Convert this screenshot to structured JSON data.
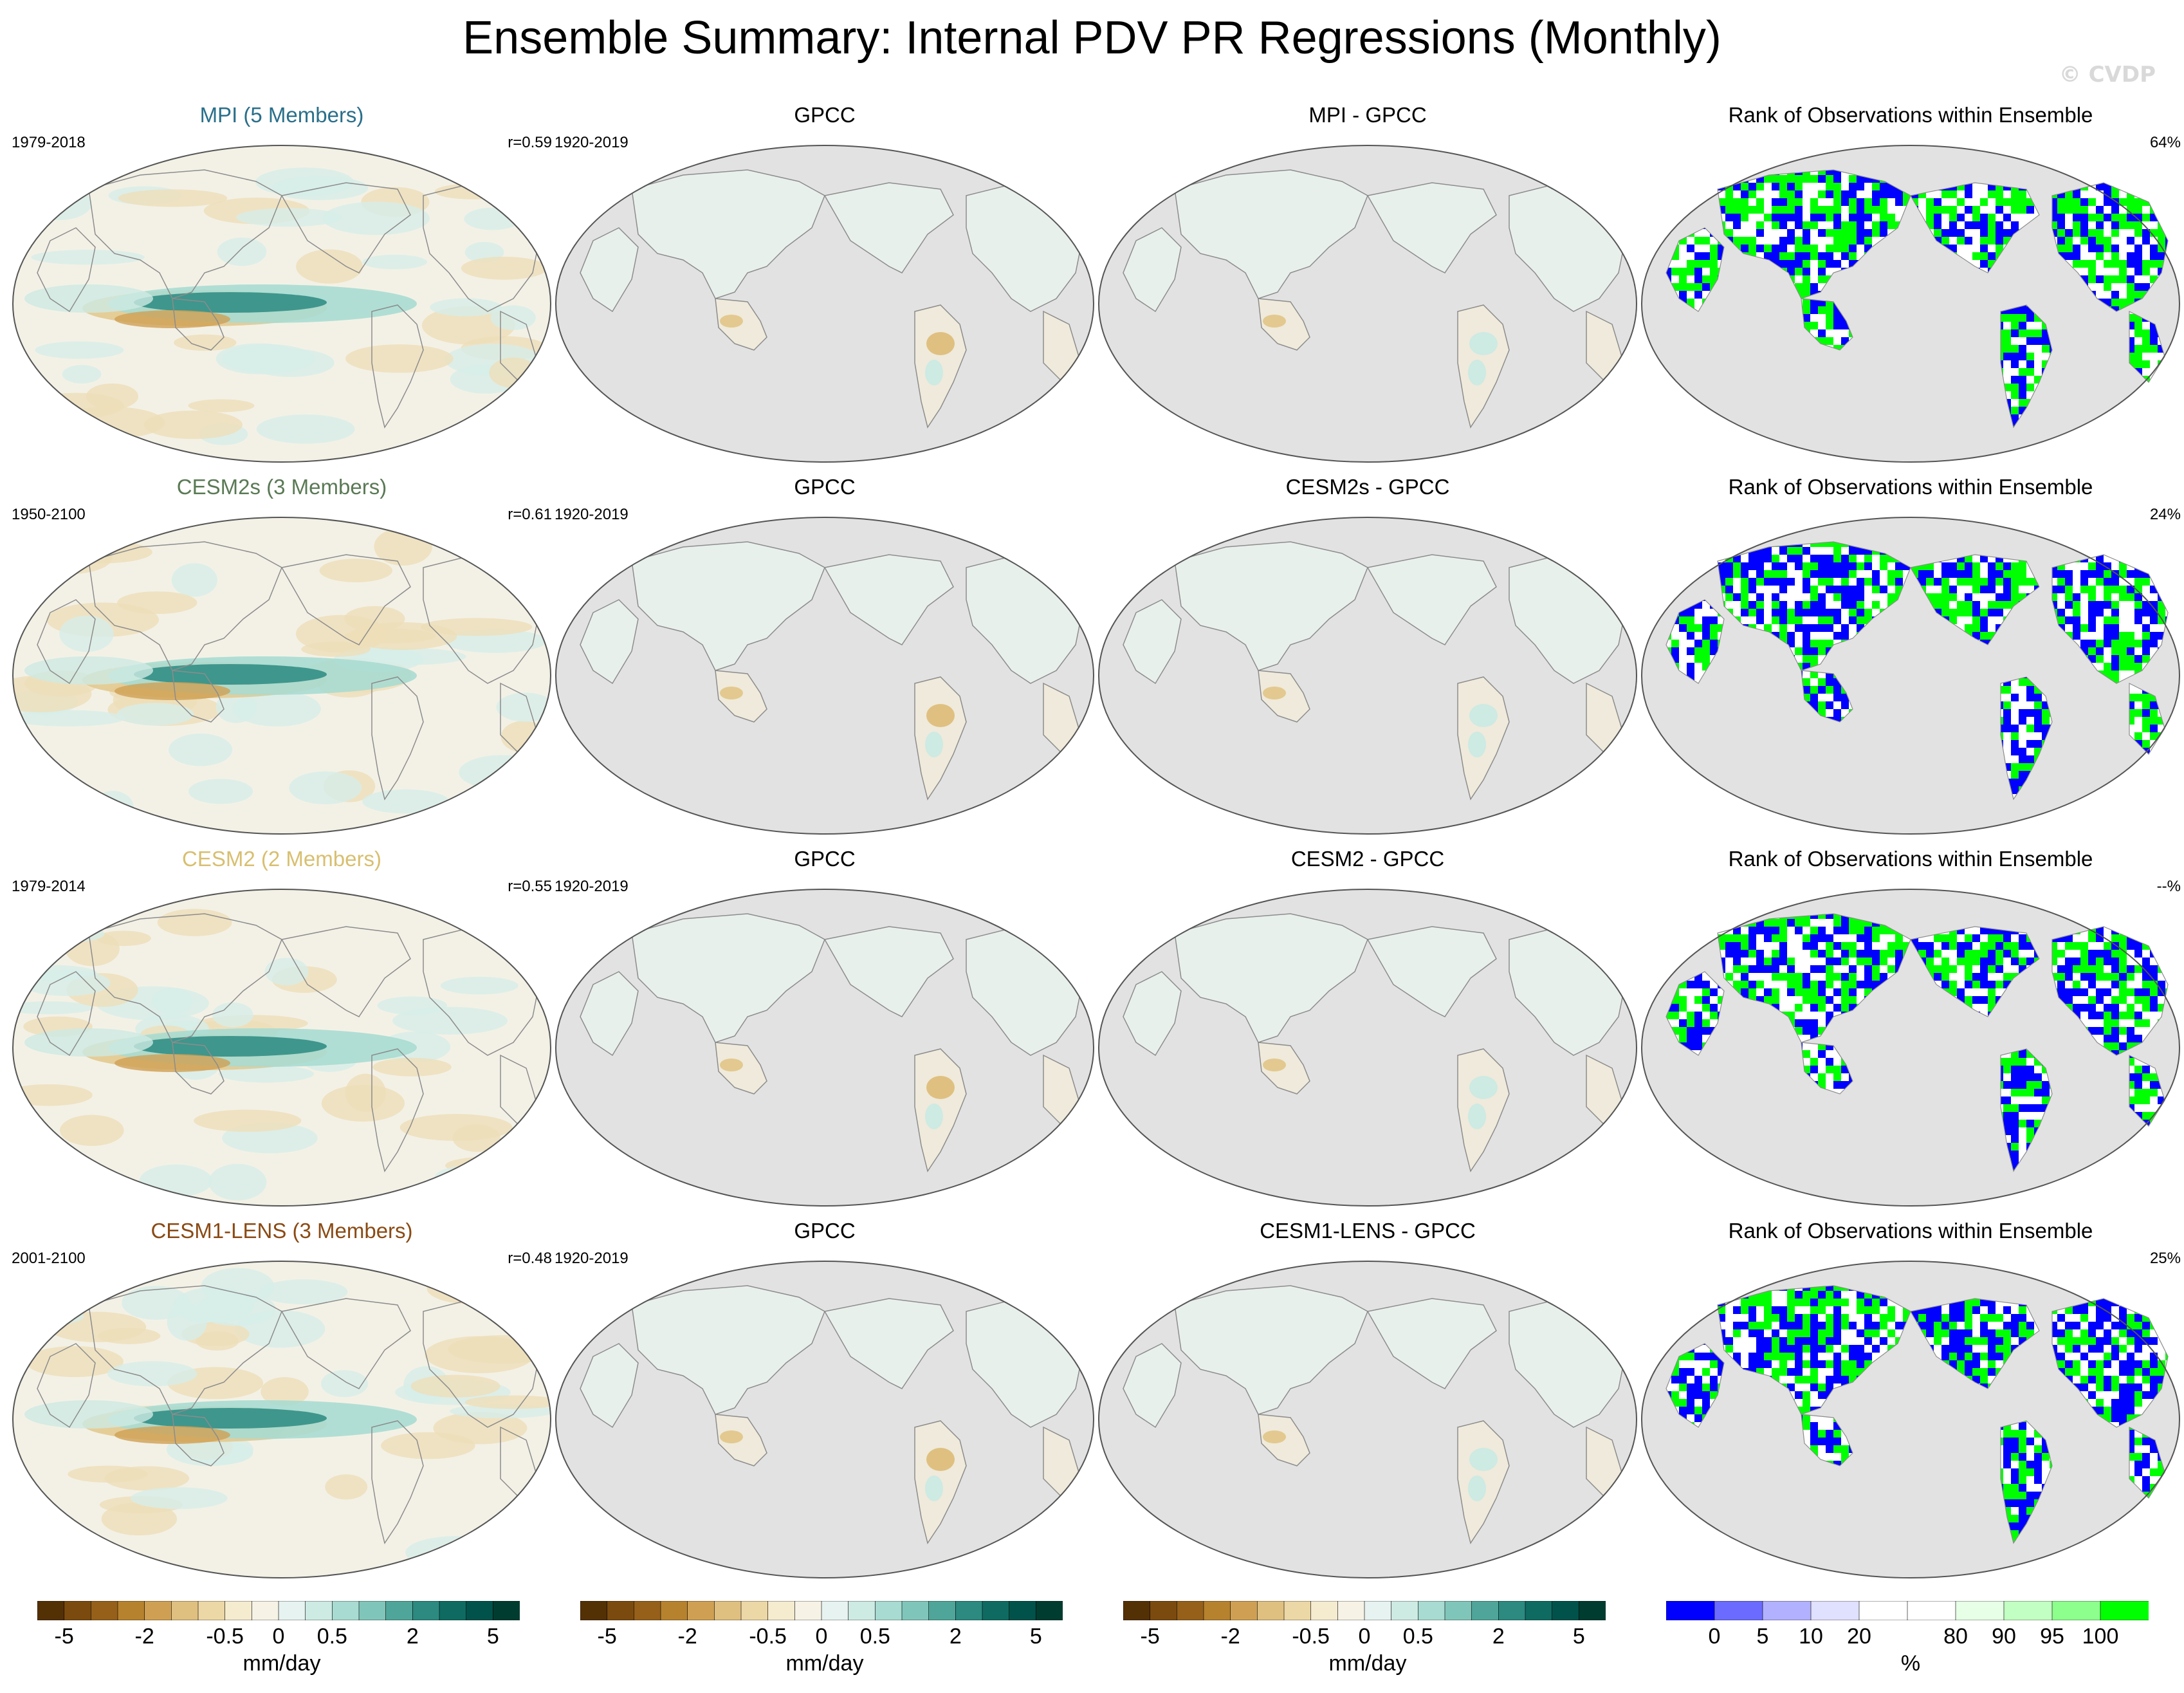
{
  "title": "Ensemble Summary: Internal PDV PR Regressions (Monthly)",
  "watermark": "© CVDP",
  "rows": [
    {
      "model_title": "MPI (5 Members)",
      "model_color": "#2a6f8a",
      "model_years": "1979-2018",
      "pattern_corr": "r=0.59",
      "obs_title": "GPCC",
      "obs_years": "1920-2019",
      "diff_title": "MPI - GPCC",
      "rank_title": "Rank of Observations within Ensemble",
      "rank_pct": "64%"
    },
    {
      "model_title": "CESM2s (3 Members)",
      "model_color": "#5a7a55",
      "model_years": "1950-2100",
      "pattern_corr": "r=0.61",
      "obs_title": "GPCC",
      "obs_years": "1920-2019",
      "diff_title": "CESM2s - GPCC",
      "rank_title": "Rank of Observations within Ensemble",
      "rank_pct": "24%"
    },
    {
      "model_title": "CESM2 (2 Members)",
      "model_color": "#d8bf70",
      "model_years": "1979-2014",
      "pattern_corr": "r=0.55",
      "obs_title": "GPCC",
      "obs_years": "1920-2019",
      "diff_title": "CESM2 - GPCC",
      "rank_title": "Rank of Observations within Ensemble",
      "rank_pct": "--%"
    },
    {
      "model_title": "CESM1-LENS (3 Members)",
      "model_color": "#8a4a14",
      "model_years": "2001-2100",
      "pattern_corr": "r=0.48",
      "obs_title": "GPCC",
      "obs_years": "1920-2019",
      "diff_title": "CESM1-LENS - GPCC",
      "rank_title": "Rank of Observations within Ensemble",
      "rank_pct": "25%"
    }
  ],
  "colorbars": {
    "regression": {
      "colors": [
        "#543005",
        "#7a4a0e",
        "#96601a",
        "#b7822e",
        "#cfa054",
        "#dfc080",
        "#ecd7a6",
        "#f5ebcf",
        "#f6f3e6",
        "#e6f3f0",
        "#cdeae3",
        "#a8dbd1",
        "#80c5b9",
        "#4fa59a",
        "#2c8a80",
        "#0f6b62",
        "#01524a",
        "#003c30"
      ],
      "ticks": [
        {
          "label": "-5",
          "pos": 1
        },
        {
          "label": "-2",
          "pos": 4
        },
        {
          "label": "-0.5",
          "pos": 7
        },
        {
          "label": "0",
          "pos": 9
        },
        {
          "label": "0.5",
          "pos": 11
        },
        {
          "label": "2",
          "pos": 14
        },
        {
          "label": "5",
          "pos": 17
        }
      ],
      "unit": "mm/day"
    },
    "rank": {
      "colors": [
        "#0000ff",
        "#6b6bff",
        "#b1b1ff",
        "#e0e0ff",
        "#ffffff",
        "#ffffff",
        "#e6ffe6",
        "#c2ffc2",
        "#8cff8c",
        "#00ff00"
      ],
      "ticks": [
        {
          "label": "0",
          "pos": 1
        },
        {
          "label": "5",
          "pos": 2
        },
        {
          "label": "10",
          "pos": 3
        },
        {
          "label": "20",
          "pos": 4
        },
        {
          "label": "80",
          "pos": 6
        },
        {
          "label": "90",
          "pos": 7
        },
        {
          "label": "95",
          "pos": 8
        },
        {
          "label": "100",
          "pos": 9
        }
      ],
      "unit": "%"
    }
  }
}
